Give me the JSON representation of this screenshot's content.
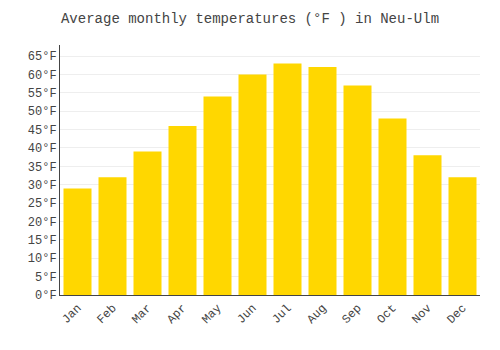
{
  "chart_data": {
    "type": "bar",
    "title": "Average monthly temperatures (°F ) in Neu-Ulm",
    "categories": [
      "Jan",
      "Feb",
      "Mar",
      "Apr",
      "May",
      "Jun",
      "Jul",
      "Aug",
      "Sep",
      "Oct",
      "Nov",
      "Dec"
    ],
    "values": [
      29,
      32,
      39,
      46,
      54,
      60,
      63,
      62,
      57,
      48,
      38,
      32
    ],
    "color": "#FFD700",
    "ylim": [
      0,
      68
    ],
    "yticks": [
      {
        "value": 0,
        "label": "0°F"
      },
      {
        "value": 5,
        "label": "5°F"
      },
      {
        "value": 10,
        "label": "10°F"
      },
      {
        "value": 15,
        "label": "15°F"
      },
      {
        "value": 20,
        "label": "20°F"
      },
      {
        "value": 25,
        "label": "25°F"
      },
      {
        "value": 30,
        "label": "30°F"
      },
      {
        "value": 35,
        "label": "35°F"
      },
      {
        "value": 40,
        "label": "40°F"
      },
      {
        "value": 45,
        "label": "45°F"
      },
      {
        "value": 50,
        "label": "50°F"
      },
      {
        "value": 55,
        "label": "55°F"
      },
      {
        "value": 60,
        "label": "60°F"
      },
      {
        "value": 65,
        "label": "65°F"
      }
    ],
    "grid": true
  }
}
